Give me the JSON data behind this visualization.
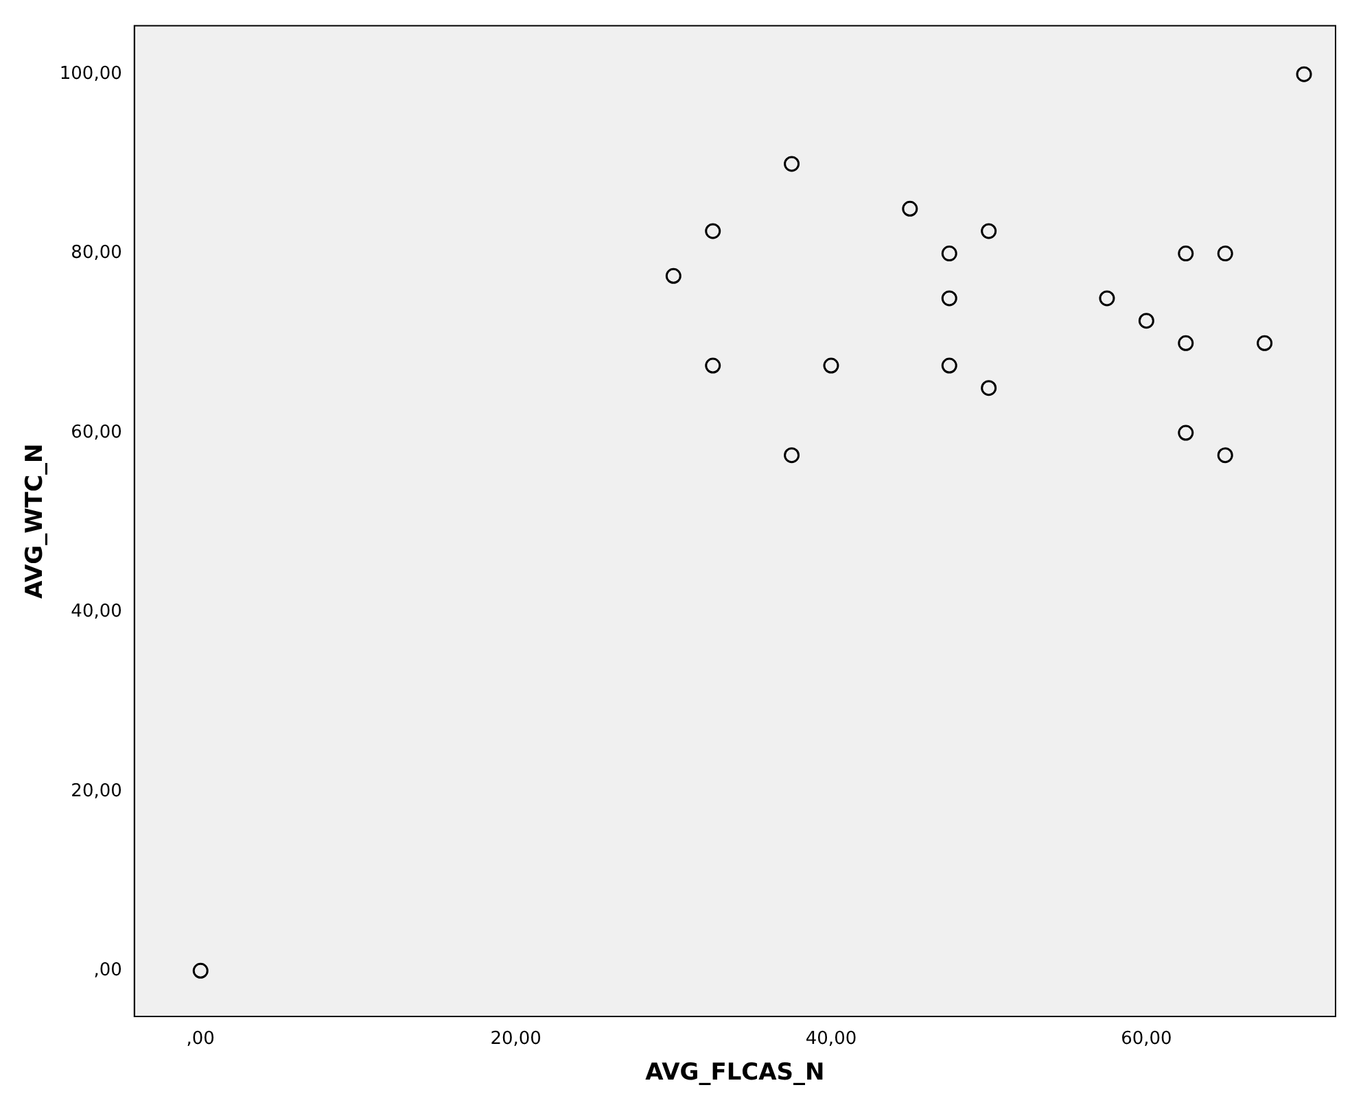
{
  "chart_data": {
    "type": "scatter",
    "xlabel": "AVG_FLCAS_N",
    "ylabel": "AVG_WTC_N",
    "series": [
      {
        "color": "#000000",
        "x": [
          0,
          30,
          32.5,
          32.5,
          37.5,
          37.5,
          40,
          45,
          47.5,
          47.5,
          47.5,
          50,
          50,
          57.5,
          60,
          62.5,
          62.5,
          62.5,
          65,
          65,
          67.5,
          70
        ],
        "values": [
          0,
          77.5,
          82.5,
          67.5,
          90,
          57.5,
          67.5,
          85,
          80,
          75,
          67.5,
          82.5,
          65,
          75,
          72.5,
          80,
          70,
          60,
          80,
          57.5,
          70,
          100
        ]
      }
    ],
    "xlim": [
      -4.2,
      72
    ],
    "ylim": [
      -5.1,
      105.4
    ],
    "xticks": [
      {
        "value": 0,
        "label": ",00"
      },
      {
        "value": 20,
        "label": "20,00"
      },
      {
        "value": 40,
        "label": "40,00"
      },
      {
        "value": 60,
        "label": "60,00"
      }
    ],
    "yticks": [
      {
        "value": 0,
        "label": ",00"
      },
      {
        "value": 20,
        "label": "20,00"
      },
      {
        "value": 40,
        "label": "40,00"
      },
      {
        "value": 60,
        "label": "60,00"
      },
      {
        "value": 80,
        "label": "80,00"
      },
      {
        "value": 100,
        "label": "100,00"
      }
    ],
    "grid": false,
    "legend": false,
    "marker": "circle"
  }
}
